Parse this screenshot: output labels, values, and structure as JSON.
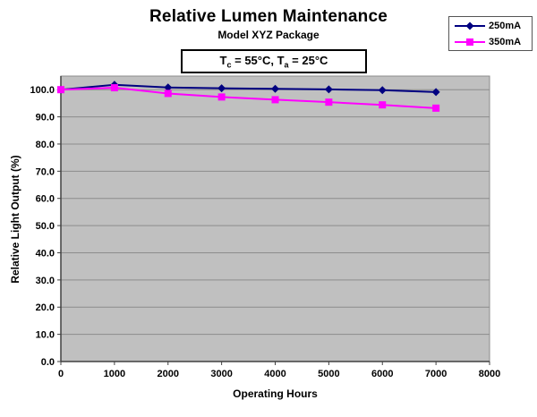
{
  "chart": {
    "title": "Relative Lumen Maintenance",
    "subtitle": "Model XYZ Package",
    "annotation": {
      "t1": "T",
      "s1": "c",
      "t2": " = 55°C, T",
      "s2": "a",
      "t3": " = 25°C"
    },
    "xlabel": "Operating Hours",
    "ylabel": "Relative Light Output (%)"
  },
  "chart_data": {
    "type": "line",
    "title": "Relative Lumen Maintenance",
    "subtitle": "Model XYZ Package",
    "annotation_text": "Tc = 55°C, Ta = 25°C",
    "xlabel": "Operating Hours",
    "ylabel": "Relative Light Output (%)",
    "x": [
      0,
      1000,
      2000,
      3000,
      4000,
      5000,
      6000,
      7000
    ],
    "series": [
      {
        "name": "250mA",
        "color": "#000080",
        "marker": "diamond",
        "values": [
          100.0,
          101.8,
          100.8,
          100.5,
          100.3,
          100.1,
          99.8,
          99.1
        ]
      },
      {
        "name": "350mA",
        "color": "#FF00FF",
        "marker": "square",
        "values": [
          100.0,
          100.7,
          98.6,
          97.3,
          96.3,
          95.4,
          94.4,
          93.2
        ]
      }
    ],
    "xlim": [
      0,
      8000
    ],
    "ylim": [
      0,
      105
    ],
    "x_ticks": [
      0,
      1000,
      2000,
      3000,
      4000,
      5000,
      6000,
      7000,
      8000
    ],
    "y_ticks": [
      0,
      10,
      20,
      30,
      40,
      50,
      60,
      70,
      80,
      90,
      100
    ],
    "y_tick_labels": [
      "0.0",
      "10.0",
      "20.0",
      "30.0",
      "40.0",
      "50.0",
      "60.0",
      "70.0",
      "80.0",
      "90.0",
      "100.0"
    ],
    "grid": true,
    "plot_bg": "#C0C0C0",
    "grid_color": "#8C8C8C",
    "axis_color": "#404040",
    "legend_position": "top-right"
  }
}
